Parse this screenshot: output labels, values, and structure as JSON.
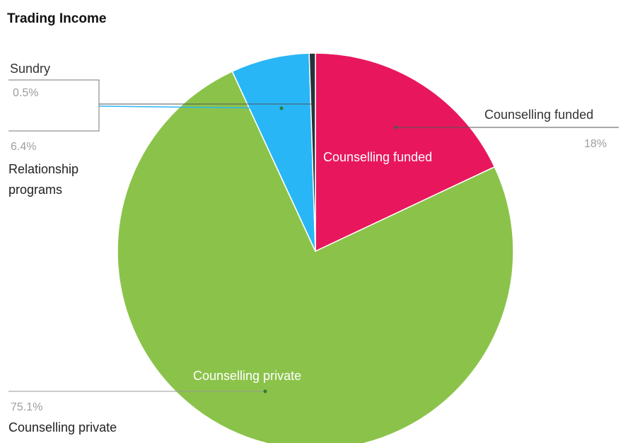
{
  "chart_data": {
    "type": "pie",
    "title": "Trading Income",
    "slices": [
      {
        "label": "Counselling funded",
        "value": 18,
        "value_label": "18%",
        "color": "#e8175d"
      },
      {
        "label": "Counselling private",
        "value": 75.1,
        "value_label": "75.1%",
        "color": "#8bc34a"
      },
      {
        "label": "Relationship programs",
        "value": 6.4,
        "value_label": "6.4%",
        "color": "#29b6f6"
      },
      {
        "label": "Sundry",
        "value": 0.5,
        "value_label": "0.5%",
        "color": "#263238"
      }
    ],
    "in_slice_labels": [
      "Counselling funded",
      "Counselling private"
    ],
    "label_lines": {
      "funded_name": "Counselling funded",
      "private_name": "Counselling private",
      "relationship_name_line1": "Relationship",
      "relationship_name_line2": "programs",
      "sundry_name": "Sundry"
    }
  }
}
